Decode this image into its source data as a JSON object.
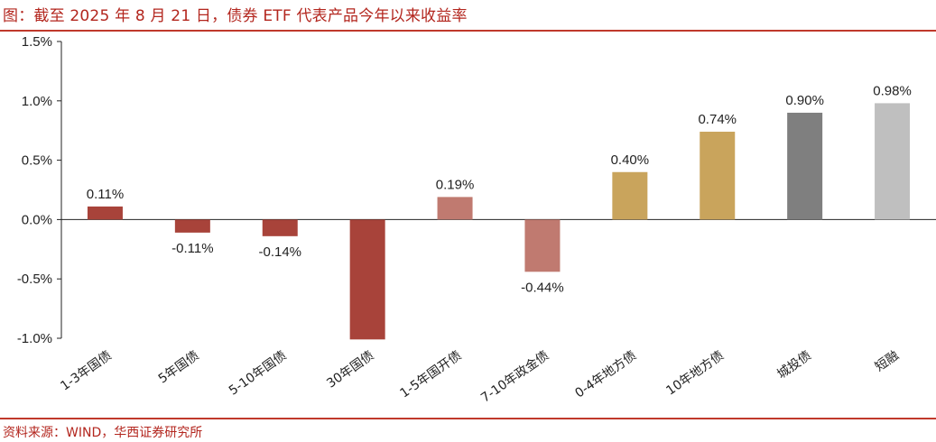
{
  "header": {
    "title": "图：截至 2025 年 8 月 21 日，债券 ETF 代表产品今年以来收益率"
  },
  "footer": {
    "source": "资料来源：WIND，华西证券研究所"
  },
  "chart_data": {
    "type": "bar",
    "title": "图：截至 2025 年 8 月 21 日，债券 ETF 代表产品今年以来收益率",
    "xlabel": "",
    "ylabel": "",
    "ylim": [
      -1.0,
      1.5
    ],
    "yticks": [
      1.5,
      1.0,
      0.5,
      0.0,
      -0.5,
      -1.0
    ],
    "ytick_labels": [
      "1.5%",
      "1.0%",
      "0.5%",
      "0.0%",
      "-0.5%",
      "-1.0%"
    ],
    "grid": false,
    "categories": [
      "1-3年国债",
      "5年国债",
      "5-10年国债",
      "30年国债",
      "1-5年国开债",
      "7-10年政金债",
      "0-4年地方债",
      "10年地方债",
      "城投债",
      "短融"
    ],
    "values": [
      0.11,
      -0.11,
      -0.14,
      -1.01,
      0.19,
      -0.44,
      0.4,
      0.74,
      0.9,
      0.98
    ],
    "data_labels": [
      "0.11%",
      "-0.11%",
      "-0.14%",
      "",
      "0.19%",
      "-0.44%",
      "0.40%",
      "0.74%",
      "0.90%",
      "0.98%"
    ],
    "colors": [
      "#a8433a",
      "#a8433a",
      "#a8433a",
      "#a8433a",
      "#c07a70",
      "#c07a70",
      "#c9a45c",
      "#c9a45c",
      "#7f7f7f",
      "#bfbfbf"
    ]
  }
}
